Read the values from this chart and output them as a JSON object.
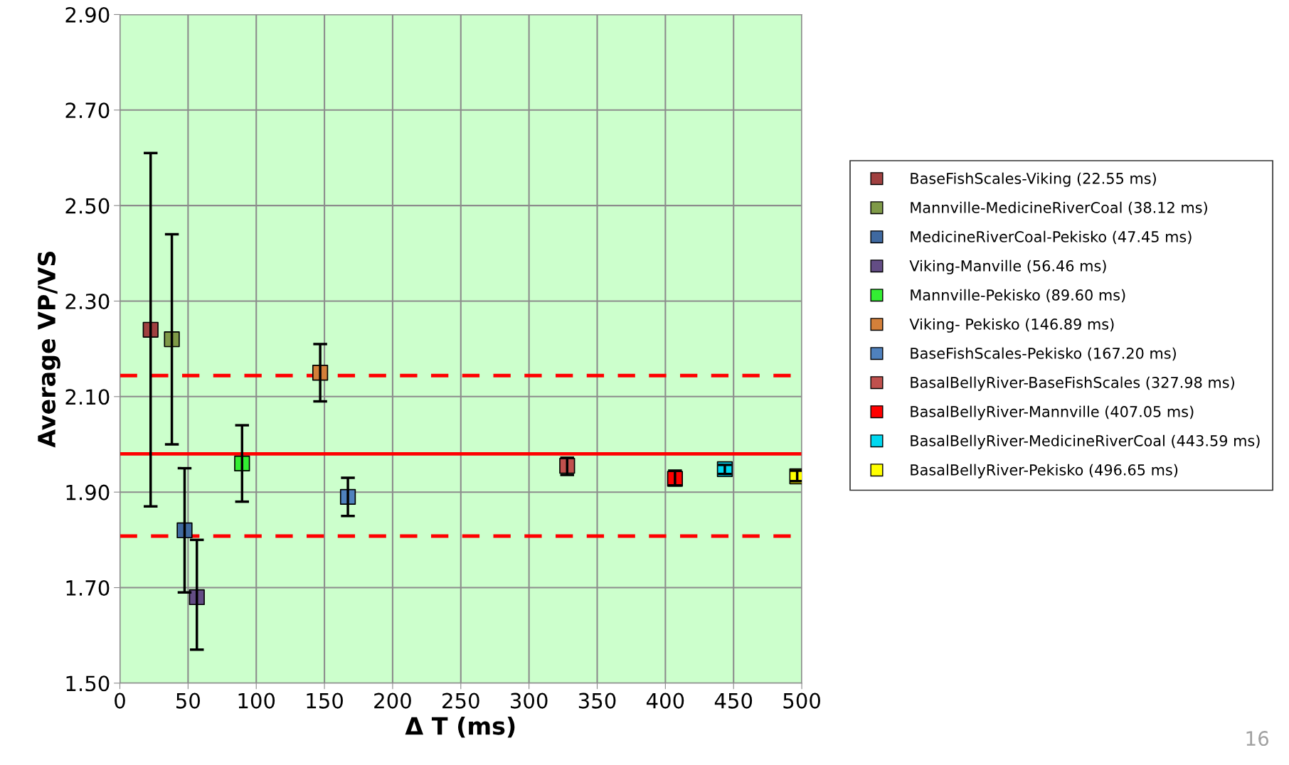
{
  "chart_data": {
    "type": "scatter",
    "xlabel": "Δ T (ms)",
    "ylabel": "Average VP/VS",
    "xlim": [
      0,
      500
    ],
    "xticks": [
      0,
      50,
      100,
      150,
      200,
      250,
      300,
      350,
      400,
      450,
      500
    ],
    "ylim": [
      1.5,
      2.9
    ],
    "yticks": [
      {
        "value": 1.5,
        "label": "1.50"
      },
      {
        "value": 1.7,
        "label": "1.70"
      },
      {
        "value": 1.9,
        "label": "1.90"
      },
      {
        "value": 2.1,
        "label": "2.10"
      },
      {
        "value": 2.3,
        "label": "2.30"
      },
      {
        "value": 2.5,
        "label": "2.50"
      },
      {
        "value": 2.7,
        "label": "2.70"
      },
      {
        "value": 2.9,
        "label": "2.90"
      }
    ],
    "grid": true,
    "legend": "right",
    "marker": "square",
    "series": [
      {
        "name": "BaseFishScales-Viking (22.55 ms)",
        "color": "#a04040",
        "x": [
          22.55
        ],
        "values": [
          2.24
        ],
        "errors": [
          [
            1.87,
            2.61
          ]
        ]
      },
      {
        "name": "Mannville-MedicineRiverCoal (38.12 ms)",
        "color": "#7f9a48",
        "x": [
          38.12
        ],
        "values": [
          2.22
        ],
        "errors": [
          [
            2.0,
            2.44
          ]
        ]
      },
      {
        "name": "MedicineRiverCoal-Pekisko (47.45 ms)",
        "color": "#3f69a0",
        "x": [
          47.45
        ],
        "values": [
          1.82
        ],
        "errors": [
          [
            1.69,
            1.95
          ]
        ]
      },
      {
        "name": "Viking-Manville (56.46 ms)",
        "color": "#634d85",
        "x": [
          56.46
        ],
        "values": [
          1.68
        ],
        "errors": [
          [
            1.57,
            1.8
          ]
        ]
      },
      {
        "name": "Mannville-Pekisko (89.60 ms)",
        "color": "#33ee33",
        "x": [
          89.6
        ],
        "values": [
          1.96
        ],
        "errors": [
          [
            1.88,
            2.04
          ]
        ]
      },
      {
        "name": "Viking- Pekisko (146.89 ms)",
        "color": "#d4803a",
        "x": [
          146.89
        ],
        "values": [
          2.15
        ],
        "errors": [
          [
            2.09,
            2.21
          ]
        ]
      },
      {
        "name": "BaseFishScales-Pekisko (167.20 ms)",
        "color": "#4f81bd",
        "x": [
          167.2
        ],
        "values": [
          1.89
        ],
        "errors": [
          [
            1.85,
            1.93
          ]
        ]
      },
      {
        "name": "BasalBellyRiver-BaseFishScales (327.98 ms)",
        "color": "#c0504d",
        "x": [
          327.98
        ],
        "values": [
          1.955
        ],
        "errors": [
          [
            1.936,
            1.972
          ]
        ]
      },
      {
        "name": "BasalBellyRiver-Mannville (407.05 ms)",
        "color": "#ff0000",
        "x": [
          407.05
        ],
        "values": [
          1.928
        ],
        "errors": [
          [
            1.914,
            1.945
          ]
        ]
      },
      {
        "name": "BasalBellyRiver-MedicineRiverCoal (443.59 ms)",
        "color": "#00d8f0",
        "x": [
          443.59
        ],
        "values": [
          1.948
        ],
        "errors": [
          [
            1.938,
            1.957
          ]
        ]
      },
      {
        "name": "BasalBellyRiver-Pekisko (496.65 ms)",
        "color": "#ffff00",
        "x": [
          496.65
        ],
        "values": [
          1.933
        ],
        "errors": [
          [
            1.923,
            1.945
          ]
        ]
      }
    ],
    "ref_lines": [
      {
        "axis": "y",
        "value": 1.98,
        "color": "#ff0000",
        "line_style": "solid"
      },
      {
        "axis": "y",
        "value": 2.144,
        "color": "#ff0000",
        "line_style": "dashed"
      },
      {
        "axis": "y",
        "value": 1.808,
        "color": "#ff0000",
        "line_style": "dashed"
      }
    ],
    "annotations": [
      "16"
    ]
  }
}
